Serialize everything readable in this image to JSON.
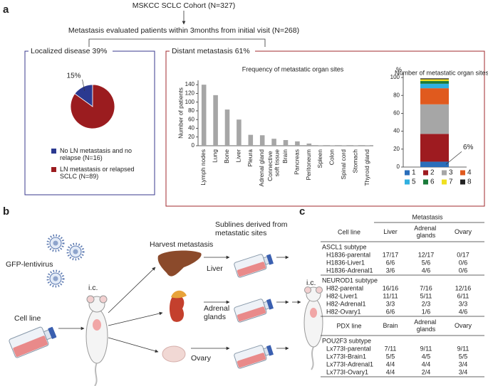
{
  "panel_a": {
    "label": "a",
    "cohort": "MSKCC SCLC Cohort (N=327)",
    "evaluated": "Metastasis evaluated patients within 3months from initial visit (N=268)",
    "localized_title": "Localized disease  39%",
    "distant_title": "Distant metastasis  61%"
  },
  "chart_data": [
    {
      "type": "pie",
      "categories": [
        "No LN metastasis and no relapse (N=16)",
        "LN metastasis or relapsed SCLC (N=89)"
      ],
      "values": [
        15,
        85
      ],
      "value_labels": [
        "15%",
        null
      ],
      "colors": [
        "#2b3990",
        "#9b1c1f"
      ]
    },
    {
      "type": "bar",
      "title": "Frequency of metastatic organ sites",
      "ylabel": "Number of patients",
      "categories": [
        "Lymph nodes",
        "Lung",
        "Bone",
        "Liver",
        "Pleura",
        "Adrenal gland",
        "Connective soft tissue",
        "Brain",
        "Pancreas",
        "Peritoneum",
        "Spleen",
        "Colon",
        "Spinal cord",
        "Stomach",
        "Thyroid gland"
      ],
      "values": [
        140,
        116,
        83,
        60,
        25,
        24,
        16,
        13,
        10,
        5,
        1,
        1,
        1,
        1,
        1
      ],
      "color": "#a6a6a6",
      "ylim": [
        0,
        150
      ],
      "yticks": [
        0,
        20,
        40,
        60,
        80,
        100,
        120,
        140
      ]
    },
    {
      "type": "stacked_bar",
      "title": "Number of metastatic organ sites",
      "ylabel": "%",
      "categories": [
        null
      ],
      "series": [
        {
          "name": "1",
          "color": "#2a6ebb",
          "values": [
            6
          ],
          "value_labels": [
            "6%"
          ]
        },
        {
          "name": "2",
          "color": "#9e1b20",
          "values": [
            31
          ]
        },
        {
          "name": "3",
          "color": "#a6a6a6",
          "values": [
            33
          ]
        },
        {
          "name": "4",
          "color": "#e05a1e",
          "values": [
            18
          ]
        },
        {
          "name": "5",
          "color": "#31b0e0",
          "values": [
            5
          ]
        },
        {
          "name": "6",
          "color": "#1a7a3a",
          "values": [
            3
          ]
        },
        {
          "name": "7",
          "color": "#f0e020",
          "values": [
            2
          ]
        },
        {
          "name": "8",
          "color": "#222222",
          "values": [
            1
          ]
        }
      ],
      "ylim": [
        0,
        105
      ],
      "yticks": [
        0,
        20,
        40,
        60,
        80,
        100
      ]
    }
  ],
  "panel_b": {
    "label": "b",
    "gfp": "GFP-lentivirus",
    "cell_line": "Cell line",
    "ic_labels": [
      "i.c.",
      "i.c."
    ],
    "harvest": "Harvest metastasis",
    "organs": [
      "Liver",
      "Adrenal glands",
      "Ovary"
    ],
    "sublines": "Sublines derived from metastatic sites"
  },
  "panel_c": {
    "label": "c",
    "group_header": "Metastasis",
    "sections": [
      {
        "header": [
          "Cell line",
          "Liver",
          "Adrenal glands",
          "Ovary"
        ],
        "groups": [
          {
            "name": "ASCL1 subtype",
            "rows": [
              [
                "H1836-parental",
                "17/17",
                "12/17",
                "0/17"
              ],
              [
                "H1836-Liver1",
                "6/6",
                "5/6",
                "0/6"
              ],
              [
                "H1836-Adrenal1",
                "3/6",
                "4/6",
                "0/6"
              ]
            ]
          },
          {
            "name": "NEUROD1 subtype",
            "rows": [
              [
                "H82-parental",
                "16/16",
                "7/16",
                "12/16"
              ],
              [
                "H82-Liver1",
                "11/11",
                "5/11",
                "6/11"
              ],
              [
                "H82-Adrenal1",
                "3/3",
                "2/3",
                "3/3"
              ],
              [
                "H82-Ovary1",
                "6/6",
                "1/6",
                "4/6"
              ]
            ]
          }
        ]
      },
      {
        "header": [
          "PDX line",
          "Brain",
          "Adrenal glands",
          "Ovary"
        ],
        "groups": [
          {
            "name": "POU2F3 subtype",
            "rows": [
              [
                "Lx773I-parental",
                "7/11",
                "9/11",
                "9/11"
              ],
              [
                "Lx773I-Brain1",
                "5/5",
                "4/5",
                "5/5"
              ],
              [
                "Lx773I-Adrenal1",
                "4/4",
                "4/4",
                "3/4"
              ],
              [
                "Lx773I-Ovary1",
                "4/4",
                "2/4",
                "3/4"
              ]
            ]
          }
        ]
      }
    ]
  }
}
